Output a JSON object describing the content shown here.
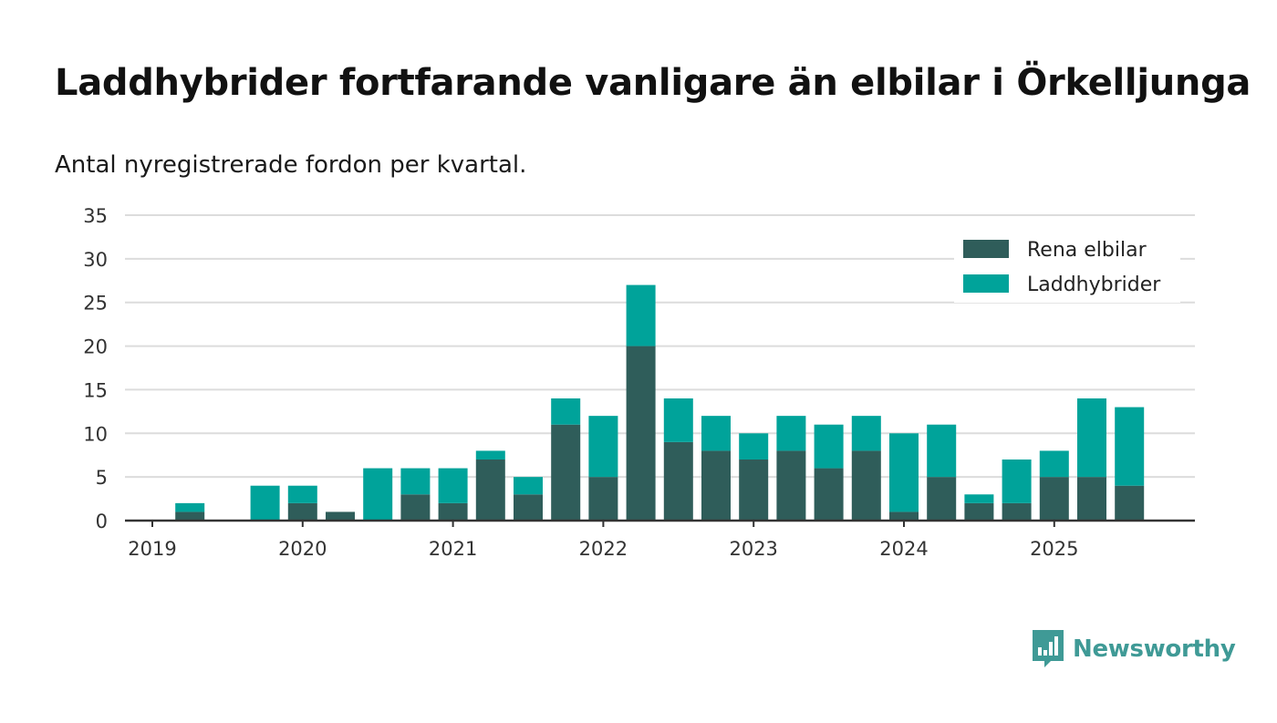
{
  "header": {
    "title": "Laddhybrider fortfarande vanligare än elbilar i Örkelljunga",
    "subtitle": "Antal nyregistrerade fordon per kvartal."
  },
  "brand": {
    "name": "Newsworthy",
    "logo_icon": "bar-chart-speech-bubble-icon",
    "color": "#3f9a96"
  },
  "chart_data": {
    "type": "bar",
    "stacked": true,
    "title": "Laddhybrider fortfarande vanligare än elbilar i Örkelljunga",
    "subtitle": "Antal nyregistrerade fordon per kvartal.",
    "xlabel": "",
    "ylabel": "",
    "ylim": [
      0,
      35
    ],
    "yticks": [
      0,
      5,
      10,
      15,
      20,
      25,
      30,
      35
    ],
    "grid": true,
    "legend_position": "top-right",
    "categories": [
      "2019 Q1",
      "2019 Q2",
      "2019 Q3",
      "2019 Q4",
      "2020 Q1",
      "2020 Q2",
      "2020 Q3",
      "2020 Q4",
      "2021 Q1",
      "2021 Q2",
      "2021 Q3",
      "2021 Q4",
      "2022 Q1",
      "2022 Q2",
      "2022 Q3",
      "2022 Q4",
      "2023 Q1",
      "2023 Q2",
      "2023 Q3",
      "2023 Q4",
      "2024 Q1",
      "2024 Q2",
      "2024 Q3",
      "2024 Q4",
      "2025 Q1",
      "2025 Q2",
      "2025 Q3"
    ],
    "x_tick_labels": [
      "2019",
      "2020",
      "2021",
      "2022",
      "2023",
      "2024",
      "2025"
    ],
    "x_tick_category_index": [
      0,
      4,
      8,
      12,
      16,
      20,
      24
    ],
    "series": [
      {
        "name": "Rena elbilar",
        "color": "#2f5d5a",
        "values": [
          0,
          1,
          0,
          0,
          2,
          1,
          0,
          3,
          2,
          7,
          3,
          11,
          5,
          20,
          9,
          8,
          7,
          8,
          6,
          8,
          1,
          5,
          2,
          2,
          5,
          5,
          4
        ]
      },
      {
        "name": "Laddhybrider",
        "color": "#00a39a",
        "values": [
          0,
          1,
          0,
          4,
          2,
          0,
          6,
          3,
          4,
          1,
          2,
          3,
          7,
          7,
          5,
          4,
          3,
          4,
          5,
          4,
          9,
          6,
          1,
          5,
          3,
          9,
          9
        ]
      }
    ]
  }
}
